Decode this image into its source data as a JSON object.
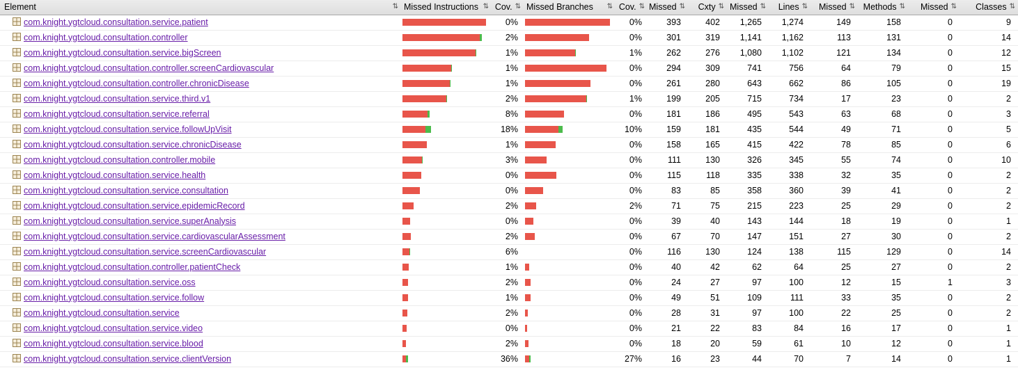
{
  "colors": {
    "bar_red": "#e8554a",
    "bar_green": "#4cbb4c",
    "link": "#681da8",
    "header_bg": "#e6e6e6"
  },
  "header": {
    "sort_glyph": "⇅",
    "sort_icon": "sort-both-arrows-icon",
    "columns": [
      {
        "id": "element",
        "label": "Element"
      },
      {
        "id": "missed-instructions",
        "label": "Missed Instructions"
      },
      {
        "id": "instructions-coverage",
        "label": "Cov."
      },
      {
        "id": "missed-branches",
        "label": "Missed Branches"
      },
      {
        "id": "branches-coverage",
        "label": "Cov."
      },
      {
        "id": "missed-cxty",
        "label": "Missed"
      },
      {
        "id": "cxty",
        "label": "Cxty"
      },
      {
        "id": "missed-lines",
        "label": "Missed"
      },
      {
        "id": "lines",
        "label": "Lines"
      },
      {
        "id": "missed-methods",
        "label": "Missed"
      },
      {
        "id": "methods",
        "label": "Methods"
      },
      {
        "id": "missed-classes",
        "label": "Missed"
      },
      {
        "id": "classes",
        "label": "Classes"
      }
    ]
  },
  "rows": [
    {
      "name": "com.knight.ygtcloud.consultation.service.patient",
      "icov": "0%",
      "ibar_red": 120,
      "ibar_green": 0,
      "bcov": "0%",
      "bbar_red": 122,
      "bbar_green": 0,
      "m_cxty": "393",
      "cxty": "402",
      "m_lines": "1,265",
      "lines": "1,274",
      "m_methods": "149",
      "methods": "158",
      "m_classes": "0",
      "classes": "9"
    },
    {
      "name": "com.knight.ygtcloud.consultation.controller",
      "icov": "2%",
      "ibar_red": 111,
      "ibar_green": 3,
      "bcov": "0%",
      "bbar_red": 92,
      "bbar_green": 0,
      "m_cxty": "301",
      "cxty": "319",
      "m_lines": "1,141",
      "lines": "1,162",
      "m_methods": "113",
      "methods": "131",
      "m_classes": "0",
      "classes": "14"
    },
    {
      "name": "com.knight.ygtcloud.consultation.service.bigScreen",
      "icov": "1%",
      "ibar_red": 105,
      "ibar_green": 1,
      "bcov": "1%",
      "bbar_red": 72,
      "bbar_green": 1,
      "m_cxty": "262",
      "cxty": "276",
      "m_lines": "1,080",
      "lines": "1,102",
      "m_methods": "121",
      "methods": "134",
      "m_classes": "0",
      "classes": "12"
    },
    {
      "name": "com.knight.ygtcloud.consultation.controller.screenCardiovascular",
      "icov": "1%",
      "ibar_red": 70,
      "ibar_green": 1,
      "bcov": "0%",
      "bbar_red": 117,
      "bbar_green": 0,
      "m_cxty": "294",
      "cxty": "309",
      "m_lines": "741",
      "lines": "756",
      "m_methods": "64",
      "methods": "79",
      "m_classes": "0",
      "classes": "15"
    },
    {
      "name": "com.knight.ygtcloud.consultation.controller.chronicDisease",
      "icov": "1%",
      "ibar_red": 68,
      "ibar_green": 1,
      "bcov": "0%",
      "bbar_red": 94,
      "bbar_green": 0,
      "m_cxty": "261",
      "cxty": "280",
      "m_lines": "643",
      "lines": "662",
      "m_methods": "86",
      "methods": "105",
      "m_classes": "0",
      "classes": "19"
    },
    {
      "name": "com.knight.ygtcloud.consultation.service.third.v1",
      "icov": "2%",
      "ibar_red": 63,
      "ibar_green": 1,
      "bcov": "1%",
      "bbar_red": 88,
      "bbar_green": 1,
      "m_cxty": "199",
      "cxty": "205",
      "m_lines": "715",
      "lines": "734",
      "m_methods": "17",
      "methods": "23",
      "m_classes": "0",
      "classes": "2"
    },
    {
      "name": "com.knight.ygtcloud.consultation.service.referral",
      "icov": "8%",
      "ibar_red": 36,
      "ibar_green": 3,
      "bcov": "0%",
      "bbar_red": 56,
      "bbar_green": 0,
      "m_cxty": "181",
      "cxty": "186",
      "m_lines": "495",
      "lines": "543",
      "m_methods": "63",
      "methods": "68",
      "m_classes": "0",
      "classes": "3"
    },
    {
      "name": "com.knight.ygtcloud.consultation.service.followUpVisit",
      "icov": "18%",
      "ibar_red": 33,
      "ibar_green": 8,
      "bcov": "10%",
      "bbar_red": 48,
      "bbar_green": 6,
      "m_cxty": "159",
      "cxty": "181",
      "m_lines": "435",
      "lines": "544",
      "m_methods": "49",
      "methods": "71",
      "m_classes": "0",
      "classes": "5"
    },
    {
      "name": "com.knight.ygtcloud.consultation.service.chronicDisease",
      "icov": "1%",
      "ibar_red": 35,
      "ibar_green": 0,
      "bcov": "0%",
      "bbar_red": 44,
      "bbar_green": 0,
      "m_cxty": "158",
      "cxty": "165",
      "m_lines": "415",
      "lines": "422",
      "m_methods": "78",
      "methods": "85",
      "m_classes": "0",
      "classes": "6"
    },
    {
      "name": "com.knight.ygtcloud.consultation.controller.mobile",
      "icov": "3%",
      "ibar_red": 28,
      "ibar_green": 1,
      "bcov": "0%",
      "bbar_red": 31,
      "bbar_green": 0,
      "m_cxty": "111",
      "cxty": "130",
      "m_lines": "326",
      "lines": "345",
      "m_methods": "55",
      "methods": "74",
      "m_classes": "0",
      "classes": "10"
    },
    {
      "name": "com.knight.ygtcloud.consultation.service.health",
      "icov": "0%",
      "ibar_red": 27,
      "ibar_green": 0,
      "bcov": "0%",
      "bbar_red": 45,
      "bbar_green": 0,
      "m_cxty": "115",
      "cxty": "118",
      "m_lines": "335",
      "lines": "338",
      "m_methods": "32",
      "methods": "35",
      "m_classes": "0",
      "classes": "2"
    },
    {
      "name": "com.knight.ygtcloud.consultation.service.consultation",
      "icov": "0%",
      "ibar_red": 25,
      "ibar_green": 0,
      "bcov": "0%",
      "bbar_red": 26,
      "bbar_green": 0,
      "m_cxty": "83",
      "cxty": "85",
      "m_lines": "358",
      "lines": "360",
      "m_methods": "39",
      "methods": "41",
      "m_classes": "0",
      "classes": "2"
    },
    {
      "name": "com.knight.ygtcloud.consultation.service.epidemicRecord",
      "icov": "2%",
      "ibar_red": 16,
      "ibar_green": 0,
      "bcov": "2%",
      "bbar_red": 16,
      "bbar_green": 0,
      "m_cxty": "71",
      "cxty": "75",
      "m_lines": "215",
      "lines": "223",
      "m_methods": "25",
      "methods": "29",
      "m_classes": "0",
      "classes": "2"
    },
    {
      "name": "com.knight.ygtcloud.consultation.service.superAnalysis",
      "icov": "0%",
      "ibar_red": 11,
      "ibar_green": 0,
      "bcov": "0%",
      "bbar_red": 12,
      "bbar_green": 0,
      "m_cxty": "39",
      "cxty": "40",
      "m_lines": "143",
      "lines": "144",
      "m_methods": "18",
      "methods": "19",
      "m_classes": "0",
      "classes": "1"
    },
    {
      "name": "com.knight.ygtcloud.consultation.service.cardiovascularAssessment",
      "icov": "2%",
      "ibar_red": 12,
      "ibar_green": 0,
      "bcov": "0%",
      "bbar_red": 14,
      "bbar_green": 0,
      "m_cxty": "67",
      "cxty": "70",
      "m_lines": "147",
      "lines": "151",
      "m_methods": "27",
      "methods": "30",
      "m_classes": "0",
      "classes": "2"
    },
    {
      "name": "com.knight.ygtcloud.consultation.service.screenCardiovascular",
      "icov": "6%",
      "ibar_red": 10,
      "ibar_green": 1,
      "bcov": "0%",
      "bbar_red": 0,
      "bbar_green": 0,
      "m_cxty": "116",
      "cxty": "130",
      "m_lines": "124",
      "lines": "138",
      "m_methods": "115",
      "methods": "129",
      "m_classes": "0",
      "classes": "14"
    },
    {
      "name": "com.knight.ygtcloud.consultation.controller.patientCheck",
      "icov": "1%",
      "ibar_red": 9,
      "ibar_green": 0,
      "bcov": "0%",
      "bbar_red": 6,
      "bbar_green": 0,
      "m_cxty": "40",
      "cxty": "42",
      "m_lines": "62",
      "lines": "64",
      "m_methods": "25",
      "methods": "27",
      "m_classes": "0",
      "classes": "2"
    },
    {
      "name": "com.knight.ygtcloud.consultation.service.oss",
      "icov": "2%",
      "ibar_red": 8,
      "ibar_green": 0,
      "bcov": "0%",
      "bbar_red": 8,
      "bbar_green": 0,
      "m_cxty": "24",
      "cxty": "27",
      "m_lines": "97",
      "lines": "100",
      "m_methods": "12",
      "methods": "15",
      "m_classes": "1",
      "classes": "3"
    },
    {
      "name": "com.knight.ygtcloud.consultation.service.follow",
      "icov": "1%",
      "ibar_red": 8,
      "ibar_green": 0,
      "bcov": "0%",
      "bbar_red": 8,
      "bbar_green": 0,
      "m_cxty": "49",
      "cxty": "51",
      "m_lines": "109",
      "lines": "111",
      "m_methods": "33",
      "methods": "35",
      "m_classes": "0",
      "classes": "2"
    },
    {
      "name": "com.knight.ygtcloud.consultation.service",
      "icov": "2%",
      "ibar_red": 7,
      "ibar_green": 0,
      "bcov": "0%",
      "bbar_red": 4,
      "bbar_green": 0,
      "m_cxty": "28",
      "cxty": "31",
      "m_lines": "97",
      "lines": "100",
      "m_methods": "22",
      "methods": "25",
      "m_classes": "0",
      "classes": "2"
    },
    {
      "name": "com.knight.ygtcloud.consultation.service.video",
      "icov": "0%",
      "ibar_red": 6,
      "ibar_green": 0,
      "bcov": "0%",
      "bbar_red": 3,
      "bbar_green": 0,
      "m_cxty": "21",
      "cxty": "22",
      "m_lines": "83",
      "lines": "84",
      "m_methods": "16",
      "methods": "17",
      "m_classes": "0",
      "classes": "1"
    },
    {
      "name": "com.knight.ygtcloud.consultation.service.blood",
      "icov": "2%",
      "ibar_red": 5,
      "ibar_green": 0,
      "bcov": "0%",
      "bbar_red": 5,
      "bbar_green": 0,
      "m_cxty": "18",
      "cxty": "20",
      "m_lines": "59",
      "lines": "61",
      "m_methods": "10",
      "methods": "12",
      "m_classes": "0",
      "classes": "1"
    },
    {
      "name": "com.knight.ygtcloud.consultation.service.clientVersion",
      "icov": "36%",
      "ibar_red": 5,
      "ibar_green": 3,
      "bcov": "27%",
      "bbar_red": 6,
      "bbar_green": 2,
      "m_cxty": "16",
      "cxty": "23",
      "m_lines": "44",
      "lines": "70",
      "m_methods": "7",
      "methods": "14",
      "m_classes": "0",
      "classes": "1"
    }
  ]
}
